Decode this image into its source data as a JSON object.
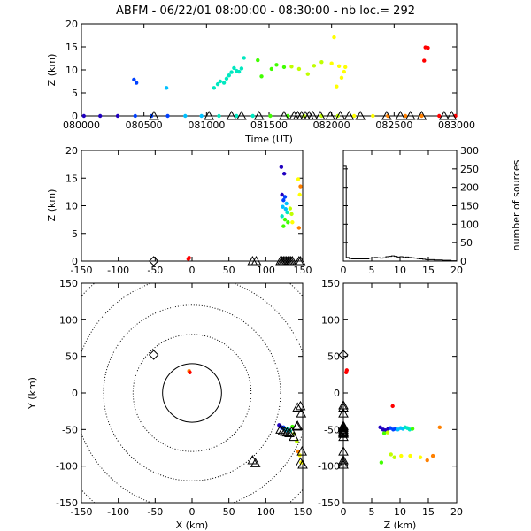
{
  "title": "ABFM - 06/22/01 08:00:00 - 08:30:00 - nb loc.=     292",
  "colors": {
    "axis": "#000000",
    "ramp": [
      "#2000c0",
      "#0040ff",
      "#00c0ff",
      "#00e8c0",
      "#40ff00",
      "#c0ff00",
      "#ffff00",
      "#ff8000",
      "#ff0000"
    ]
  },
  "chart_data": [
    {
      "id": "time-height",
      "type": "scatter",
      "xlabel": "Time (UT)",
      "ylabel": "Z (km)",
      "xlim": [
        80000,
        83000
      ],
      "ylim": [
        0,
        20
      ],
      "xticks": [
        "080000",
        "080500",
        "081000",
        "081500",
        "082000",
        "082500",
        "083000"
      ],
      "yticks": [
        0,
        5,
        10,
        15,
        20
      ],
      "points_t_z": [
        [
          80420,
          7.9
        ],
        [
          80440,
          7.2
        ],
        [
          80680,
          6.1
        ],
        [
          81060,
          6.1
        ],
        [
          81090,
          6.9
        ],
        [
          81110,
          7.5
        ],
        [
          81140,
          7.2
        ],
        [
          81160,
          8.1
        ],
        [
          81180,
          8.8
        ],
        [
          81200,
          9.5
        ],
        [
          81220,
          10.4
        ],
        [
          81240,
          9.8
        ],
        [
          81260,
          9.6
        ],
        [
          81280,
          10.3
        ],
        [
          81300,
          12.6
        ],
        [
          81410,
          12.1
        ],
        [
          81440,
          8.6
        ],
        [
          81520,
          10.2
        ],
        [
          81560,
          11.1
        ],
        [
          81620,
          10.6
        ],
        [
          81680,
          10.7
        ],
        [
          81740,
          10.2
        ],
        [
          81810,
          9.1
        ],
        [
          81860,
          10.9
        ],
        [
          81920,
          11.7
        ],
        [
          82000,
          11.4
        ],
        [
          82020,
          17.1
        ],
        [
          82040,
          6.4
        ],
        [
          82060,
          10.8
        ],
        [
          82080,
          8.3
        ],
        [
          82100,
          9.6
        ],
        [
          82110,
          10.6
        ],
        [
          82740,
          12.0
        ],
        [
          82750,
          14.9
        ],
        [
          82770,
          14.8
        ]
      ],
      "ground_sources_t": [
        80020,
        80150,
        80290,
        80430,
        80560,
        80690,
        80830,
        80960,
        81100,
        81240,
        81370,
        81510,
        81650,
        81780,
        81920,
        82050,
        82180,
        82330,
        82450,
        82590,
        82720,
        82860,
        82990
      ],
      "stations_t": [
        80580,
        81020,
        81200,
        81280,
        81420,
        81620,
        81700,
        81730,
        81760,
        81790,
        81820,
        81850,
        81910,
        81990,
        82070,
        82140,
        82230,
        82440,
        82550,
        82630,
        82720,
        82900,
        82960
      ]
    },
    {
      "id": "x-z",
      "type": "scatter",
      "xlabel": "",
      "ylabel": "Z (km)",
      "xlim": [
        -150,
        150
      ],
      "ylim": [
        0,
        20
      ],
      "xticks": [
        -150,
        -100,
        -50,
        0,
        50,
        100,
        150
      ],
      "yticks": [
        0,
        5,
        10,
        15,
        20
      ],
      "points_x_z": [
        [
          121,
          17.0
        ],
        [
          125,
          15.8
        ],
        [
          122,
          12.0
        ],
        [
          126,
          11.6
        ],
        [
          124,
          11.0
        ],
        [
          128,
          10.4
        ],
        [
          123,
          9.8
        ],
        [
          127,
          9.4
        ],
        [
          129,
          8.8
        ],
        [
          122,
          8.1
        ],
        [
          126,
          7.5
        ],
        [
          130,
          7.0
        ],
        [
          124,
          6.3
        ],
        [
          133,
          9.5
        ],
        [
          135,
          8.5
        ],
        [
          136,
          7.0
        ],
        [
          144,
          14.8
        ],
        [
          146,
          12.0
        ],
        [
          145,
          6.0
        ],
        [
          147,
          13.5
        ],
        [
          -5,
          0.4
        ],
        [
          -4,
          0.6
        ]
      ],
      "stations_x": [
        82,
        87,
        120,
        122,
        124,
        126,
        128,
        130,
        132,
        134,
        136,
        145,
        147
      ],
      "diamond_x": [
        -52
      ]
    },
    {
      "id": "z-histogram",
      "type": "area",
      "ylabel": "number of sources",
      "xlim": [
        0,
        20
      ],
      "ylim": [
        0,
        300
      ],
      "xticks": [
        0,
        5,
        10,
        15,
        20
      ],
      "yticks": [
        0,
        50,
        100,
        150,
        200,
        250,
        300
      ],
      "bin_width_km": 0.5,
      "counts": [
        257,
        10,
        7,
        6,
        6,
        6,
        6,
        6,
        6,
        8,
        9,
        10,
        9,
        8,
        9,
        12,
        13,
        14,
        13,
        11,
        12,
        10,
        11,
        10,
        9,
        8,
        7,
        6,
        5,
        4,
        4,
        4,
        3,
        3,
        3,
        2,
        2,
        2,
        1,
        1
      ]
    },
    {
      "id": "plan-view",
      "type": "scatter",
      "xlabel": "X (km)",
      "ylabel": "Y (km)",
      "xlim": [
        -150,
        150
      ],
      "ylim": [
        -150,
        150
      ],
      "xticks": [
        -150,
        -100,
        -50,
        0,
        50,
        100,
        150
      ],
      "yticks": [
        -150,
        -100,
        -50,
        0,
        50,
        100,
        150
      ],
      "range_rings_km": [
        40,
        80,
        120,
        160,
        200
      ],
      "points_x_y": [
        [
          118,
          -44
        ],
        [
          120,
          -46
        ],
        [
          122,
          -48
        ],
        [
          124,
          -47
        ],
        [
          126,
          -50
        ],
        [
          128,
          -51
        ],
        [
          130,
          -49
        ],
        [
          133,
          -52
        ],
        [
          136,
          -46
        ],
        [
          138,
          -56
        ],
        [
          142,
          -66
        ],
        [
          146,
          -85
        ],
        [
          148,
          -95
        ],
        [
          144,
          -80
        ],
        [
          -4,
          30
        ],
        [
          -3,
          28
        ]
      ],
      "stations_x_y": [
        [
          82,
          -92
        ],
        [
          86,
          -96
        ],
        [
          120,
          -50
        ],
        [
          123,
          -52
        ],
        [
          126,
          -53
        ],
        [
          129,
          -54
        ],
        [
          132,
          -55
        ],
        [
          135,
          -53
        ],
        [
          138,
          -60
        ],
        [
          143,
          -45
        ],
        [
          143,
          -20
        ],
        [
          147,
          -18
        ],
        [
          148,
          -28
        ],
        [
          149,
          -80
        ],
        [
          147,
          -95
        ],
        [
          150,
          -98
        ],
        [
          142,
          -46
        ]
      ],
      "diamond_x_y": [
        [
          -52,
          52
        ]
      ]
    },
    {
      "id": "z-y",
      "type": "scatter",
      "xlabel": "Z (km)",
      "ylabel": "",
      "xlim": [
        0,
        20
      ],
      "ylim": [
        -150,
        150
      ],
      "xticks": [
        0,
        5,
        10,
        15,
        20
      ],
      "yticks": [
        -150,
        -100,
        -50,
        0,
        50,
        100,
        150
      ],
      "points_z_y": [
        [
          6.5,
          -47
        ],
        [
          7.0,
          -50
        ],
        [
          7.4,
          -51
        ],
        [
          7.9,
          -49
        ],
        [
          8.3,
          -48
        ],
        [
          8.8,
          -50
        ],
        [
          9.2,
          -49
        ],
        [
          9.6,
          -50
        ],
        [
          10.1,
          -48
        ],
        [
          10.5,
          -49
        ],
        [
          10.9,
          -47
        ],
        [
          11.3,
          -48
        ],
        [
          11.7,
          -50
        ],
        [
          12.2,
          -49
        ],
        [
          6.7,
          -95
        ],
        [
          7.2,
          -55
        ],
        [
          7.8,
          -54
        ],
        [
          8.4,
          -84
        ],
        [
          9.0,
          -88
        ],
        [
          10.2,
          -86
        ],
        [
          11.8,
          -86
        ],
        [
          13.6,
          -88
        ],
        [
          14.8,
          -92
        ],
        [
          15.8,
          -86
        ],
        [
          17.0,
          -47
        ],
        [
          8.7,
          -18
        ],
        [
          0.5,
          28
        ],
        [
          0.6,
          31
        ]
      ],
      "stations_y": [
        -17,
        -20,
        -28,
        -45,
        -46,
        -48,
        -50,
        -52,
        -53,
        -54,
        -55,
        -56,
        -60,
        -80,
        -92,
        -95,
        -98
      ],
      "diamond_y": [
        52
      ]
    }
  ]
}
